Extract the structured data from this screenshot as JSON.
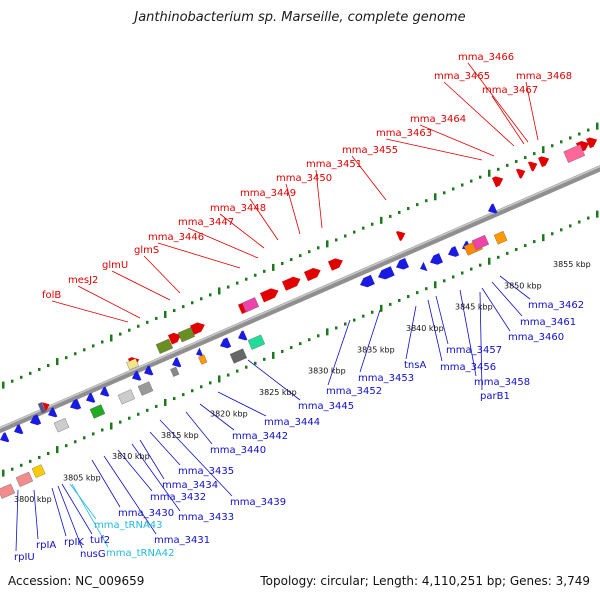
{
  "title": "Janthinobacterium sp. Marseille, complete genome",
  "accession": "Accession: NC_009659",
  "summary": "Topology: circular; Length: 4,110,251 bp; Genes: 3,749",
  "colors": {
    "forward_label": "#e00000",
    "reverse_label": "#1010c8",
    "trna_label": "#22bbdd",
    "backbone": "#8f8f8f",
    "tick": "#1a7a1a"
  },
  "kbp_markers": [
    "3800 kbp",
    "3805 kbp",
    "3810 kbp",
    "3815 kbp",
    "3820 kbp",
    "3825 kbp",
    "3830 kbp",
    "3835 kbp",
    "3840 kbp",
    "3845 kbp",
    "3850 kbp",
    "3855 kbp"
  ],
  "forward_labels": [
    "folB",
    "mesJ2",
    "glmU",
    "glmS",
    "mma_3446",
    "mma_3447",
    "mma_3448",
    "mma_3449",
    "mma_3450",
    "mma_3451",
    "mma_3455",
    "mma_3463",
    "mma_3464",
    "mma_3465",
    "mma_3466",
    "mma_3467",
    "mma_3468"
  ],
  "reverse_labels": [
    "rpIU",
    "rpIA",
    "rpIK",
    "nusG",
    "tuf2",
    "mma_tRNA43",
    "mma_tRNA42",
    "mma_3430",
    "mma_3431",
    "mma_3432",
    "mma_3433",
    "mma_3434",
    "mma_3435",
    "mma_3439",
    "mma_3440",
    "mma_3442",
    "mma_3444",
    "mma_3445",
    "mma_3452",
    "mma_3453",
    "tnsA",
    "mma_3456",
    "mma_3457",
    "mma_3458",
    "parB1",
    "mma_3460",
    "mma_3461",
    "mma_3462"
  ]
}
